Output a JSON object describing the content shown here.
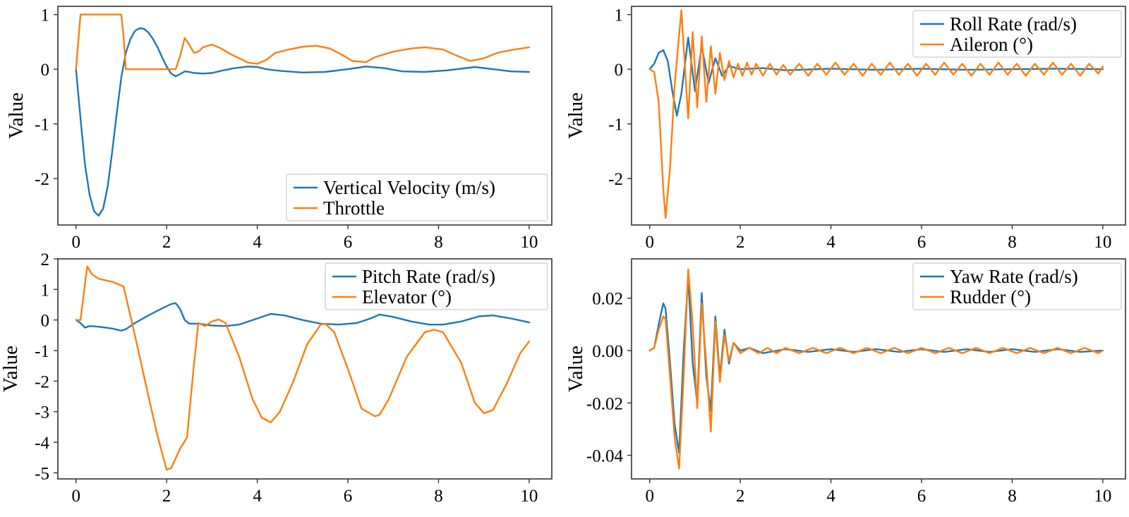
{
  "colors": {
    "blue": "#1f77b4",
    "orange": "#ff7f0e"
  },
  "chart_data": [
    {
      "type": "line",
      "title": "",
      "xlabel": "",
      "ylabel": "Value",
      "xlim": [
        -0.4,
        10.5
      ],
      "ylim": [
        -2.85,
        1.15
      ],
      "xticks": [
        0,
        2,
        4,
        6,
        8,
        10
      ],
      "xtick_labels": [
        "0",
        "2",
        "4",
        "6",
        "8",
        "10"
      ],
      "yticks": [
        1,
        0,
        -1,
        -2
      ],
      "ytick_labels": [
        "1",
        "0",
        "-1",
        "-2"
      ],
      "legend_position": "bottom-right",
      "series": [
        {
          "name": "Vertical Velocity (m/s)",
          "color": "#1f77b4",
          "x": [
            0,
            0.1,
            0.2,
            0.3,
            0.4,
            0.5,
            0.6,
            0.7,
            0.8,
            0.9,
            1.0,
            1.1,
            1.2,
            1.3,
            1.4,
            1.5,
            1.6,
            1.7,
            1.8,
            1.9,
            2.0,
            2.1,
            2.2,
            2.3,
            2.4,
            2.5,
            2.6,
            2.8,
            3.0,
            3.2,
            3.5,
            3.8,
            4.0,
            4.2,
            4.5,
            5.0,
            5.5,
            6.0,
            6.4,
            6.8,
            7.2,
            7.7,
            8.2,
            8.8,
            9.2,
            9.6,
            10.0
          ],
          "y": [
            0,
            -0.9,
            -1.75,
            -2.3,
            -2.6,
            -2.68,
            -2.55,
            -2.15,
            -1.5,
            -0.8,
            -0.15,
            0.3,
            0.55,
            0.7,
            0.75,
            0.74,
            0.67,
            0.55,
            0.4,
            0.22,
            0.05,
            -0.08,
            -0.13,
            -0.09,
            -0.04,
            -0.05,
            -0.07,
            -0.08,
            -0.07,
            -0.03,
            0.02,
            0.05,
            0.04,
            0.0,
            -0.03,
            -0.06,
            -0.05,
            0.0,
            0.05,
            0.02,
            -0.04,
            -0.05,
            -0.02,
            0.04,
            0.0,
            -0.04,
            -0.05
          ]
        },
        {
          "name": "Throttle",
          "color": "#ff7f0e",
          "x": [
            0,
            0.05,
            0.1,
            0.5,
            0.9,
            1.0,
            1.05,
            1.1,
            1.5,
            2.0,
            2.2,
            2.3,
            2.4,
            2.5,
            2.6,
            2.7,
            2.8,
            3.0,
            3.2,
            3.4,
            3.6,
            3.8,
            4.0,
            4.2,
            4.4,
            4.7,
            5.0,
            5.3,
            5.6,
            5.9,
            6.1,
            6.4,
            6.6,
            7.0,
            7.4,
            7.7,
            8.1,
            8.4,
            8.7,
            9.0,
            9.3,
            9.6,
            10.0
          ],
          "y": [
            0,
            0.5,
            1.0,
            1.0,
            1.0,
            1.0,
            0.6,
            0.0,
            0.0,
            0.0,
            0.0,
            0.25,
            0.57,
            0.45,
            0.3,
            0.32,
            0.4,
            0.45,
            0.38,
            0.28,
            0.2,
            0.12,
            0.1,
            0.17,
            0.3,
            0.36,
            0.41,
            0.43,
            0.38,
            0.25,
            0.15,
            0.13,
            0.22,
            0.32,
            0.38,
            0.4,
            0.36,
            0.25,
            0.15,
            0.2,
            0.3,
            0.35,
            0.4
          ]
        }
      ]
    },
    {
      "type": "line",
      "title": "",
      "xlabel": "",
      "ylabel": "Value",
      "xlim": [
        -0.4,
        10.5
      ],
      "ylim": [
        -2.85,
        1.15
      ],
      "xticks": [
        0,
        2,
        4,
        6,
        8,
        10
      ],
      "xtick_labels": [
        "0",
        "2",
        "4",
        "6",
        "8",
        "10"
      ],
      "yticks": [
        1,
        0,
        -1,
        -2
      ],
      "ytick_labels": [
        "1",
        "0",
        "-1",
        "-2"
      ],
      "legend_position": "top-right",
      "series": [
        {
          "name": "Roll Rate (rad/s)",
          "color": "#1f77b4",
          "x": [
            0,
            0.1,
            0.2,
            0.3,
            0.4,
            0.5,
            0.6,
            0.7,
            0.85,
            1.0,
            1.15,
            1.3,
            1.45,
            1.6,
            1.75,
            2.0,
            2.5,
            3.0,
            4.0,
            5.0,
            6.0,
            7.0,
            8.0,
            9.0,
            10.0
          ],
          "y": [
            0,
            0.1,
            0.3,
            0.35,
            0.15,
            -0.4,
            -0.85,
            -0.45,
            0.58,
            -0.4,
            0.42,
            -0.25,
            0.2,
            -0.12,
            0.06,
            0.0,
            0.02,
            -0.02,
            0.01,
            -0.01,
            0.01,
            -0.01,
            0.0,
            0.01,
            0.0
          ]
        },
        {
          "name": "Aileron (°)",
          "color": "#ff7f0e",
          "x": [
            0,
            0.1,
            0.2,
            0.3,
            0.35,
            0.45,
            0.55,
            0.7,
            0.85,
            0.95,
            1.05,
            1.15,
            1.25,
            1.35,
            1.45,
            1.55,
            1.65,
            1.75,
            1.85,
            1.95,
            2.05,
            2.15,
            2.25,
            2.35,
            2.5,
            2.65,
            2.8,
            2.95,
            3.1,
            3.3,
            3.5,
            3.7,
            3.9,
            4.1,
            4.3,
            4.5,
            4.7,
            4.9,
            5.1,
            5.3,
            5.5,
            5.7,
            5.9,
            6.1,
            6.3,
            6.5,
            6.7,
            6.9,
            7.1,
            7.3,
            7.5,
            7.7,
            7.9,
            8.1,
            8.3,
            8.5,
            8.7,
            8.9,
            9.1,
            9.3,
            9.5,
            9.7,
            9.9,
            10.0
          ],
          "y": [
            0,
            -0.05,
            -0.6,
            -2.2,
            -2.72,
            -1.8,
            -0.3,
            1.08,
            -0.9,
            0.68,
            -0.7,
            0.6,
            -0.6,
            0.42,
            -0.45,
            0.3,
            -0.2,
            0.15,
            -0.15,
            0.1,
            -0.12,
            0.12,
            -0.1,
            0.1,
            -0.12,
            0.1,
            -0.1,
            0.08,
            -0.1,
            0.1,
            -0.12,
            0.1,
            -0.1,
            0.12,
            -0.1,
            0.1,
            -0.12,
            0.1,
            -0.1,
            0.12,
            -0.1,
            0.1,
            -0.12,
            0.1,
            -0.1,
            0.12,
            -0.1,
            0.1,
            -0.12,
            0.1,
            -0.1,
            0.12,
            -0.1,
            0.1,
            -0.12,
            0.1,
            -0.1,
            0.12,
            -0.1,
            0.1,
            -0.12,
            0.1,
            -0.08,
            0.05
          ]
        }
      ]
    },
    {
      "type": "line",
      "title": "",
      "xlabel": "",
      "ylabel": "Value",
      "xlim": [
        -0.4,
        10.5
      ],
      "ylim": [
        -5.2,
        2.0
      ],
      "xticks": [
        0,
        2,
        4,
        6,
        8,
        10
      ],
      "xtick_labels": [
        "0",
        "2",
        "4",
        "6",
        "8",
        "10"
      ],
      "yticks": [
        2,
        1,
        0,
        -1,
        -2,
        -3,
        -4,
        -5
      ],
      "ytick_labels": [
        "2",
        "1",
        "0",
        "-1",
        "-2",
        "-3",
        "-4",
        "-5"
      ],
      "legend_position": "top-right",
      "series": [
        {
          "name": "Pitch Rate (rad/s)",
          "color": "#1f77b4",
          "x": [
            0,
            0.1,
            0.2,
            0.3,
            0.5,
            0.8,
            1.0,
            1.1,
            1.3,
            1.6,
            1.9,
            2.1,
            2.2,
            2.3,
            2.4,
            2.5,
            2.7,
            3.0,
            3.3,
            3.6,
            3.9,
            4.2,
            4.3,
            4.6,
            5.0,
            5.4,
            5.8,
            6.2,
            6.5,
            6.7,
            7.0,
            7.4,
            7.8,
            8.1,
            8.5,
            8.9,
            9.2,
            9.6,
            10.0
          ],
          "y": [
            0,
            -0.1,
            -0.25,
            -0.2,
            -0.22,
            -0.28,
            -0.35,
            -0.3,
            -0.1,
            0.15,
            0.38,
            0.52,
            0.55,
            0.35,
            0.0,
            -0.12,
            -0.12,
            -0.18,
            -0.2,
            -0.15,
            0.0,
            0.15,
            0.2,
            0.15,
            0.0,
            -0.12,
            -0.15,
            -0.1,
            0.05,
            0.18,
            0.1,
            -0.05,
            -0.15,
            -0.15,
            -0.05,
            0.12,
            0.15,
            0.05,
            -0.08
          ]
        },
        {
          "name": "Elevator (°)",
          "color": "#ff7f0e",
          "x": [
            0,
            0.1,
            0.2,
            0.25,
            0.35,
            0.5,
            0.8,
            1.05,
            1.3,
            1.6,
            1.8,
            2.0,
            2.1,
            2.3,
            2.45,
            2.6,
            2.7,
            2.85,
            3.0,
            3.15,
            3.3,
            3.6,
            3.9,
            4.1,
            4.3,
            4.5,
            4.8,
            5.1,
            5.4,
            5.5,
            5.7,
            6.0,
            6.3,
            6.6,
            6.7,
            6.9,
            7.3,
            7.7,
            7.9,
            8.1,
            8.5,
            8.8,
            9.0,
            9.2,
            9.5,
            9.8,
            10.0
          ],
          "y": [
            0,
            0.0,
            1.2,
            1.75,
            1.5,
            1.35,
            1.25,
            1.1,
            -0.5,
            -2.5,
            -3.8,
            -4.9,
            -4.85,
            -4.2,
            -3.85,
            -1.5,
            -0.1,
            -0.2,
            -0.05,
            0.02,
            -0.1,
            -1.2,
            -2.6,
            -3.2,
            -3.35,
            -3.0,
            -2.0,
            -0.8,
            -0.15,
            -0.12,
            -0.4,
            -1.6,
            -2.9,
            -3.15,
            -3.1,
            -2.6,
            -1.2,
            -0.4,
            -0.32,
            -0.4,
            -1.4,
            -2.7,
            -3.05,
            -2.95,
            -2.1,
            -1.1,
            -0.7
          ]
        }
      ]
    },
    {
      "type": "line",
      "title": "",
      "xlabel": "",
      "ylabel": "Value",
      "xlim": [
        -0.4,
        10.5
      ],
      "ylim": [
        -0.049,
        0.035
      ],
      "xticks": [
        0,
        2,
        4,
        6,
        8,
        10
      ],
      "xtick_labels": [
        "0",
        "2",
        "4",
        "6",
        "8",
        "10"
      ],
      "yticks": [
        0.02,
        0.0,
        -0.02,
        -0.04
      ],
      "ytick_labels": [
        "0.02",
        "0.00",
        "-0.02",
        "-0.04"
      ],
      "legend_position": "top-right",
      "series": [
        {
          "name": "Yaw Rate (rad/s)",
          "color": "#1f77b4",
          "x": [
            0,
            0.1,
            0.2,
            0.3,
            0.35,
            0.45,
            0.55,
            0.65,
            0.75,
            0.85,
            0.95,
            1.05,
            1.15,
            1.25,
            1.35,
            1.45,
            1.55,
            1.65,
            1.75,
            1.85,
            2.0,
            2.2,
            2.5,
            3.0,
            3.5,
            4.0,
            4.5,
            5.0,
            5.5,
            6.0,
            6.5,
            7.0,
            7.5,
            8.0,
            8.5,
            9.0,
            9.5,
            10.0
          ],
          "y": [
            0,
            0.001,
            0.01,
            0.018,
            0.016,
            -0.005,
            -0.028,
            -0.039,
            0.0,
            0.028,
            -0.005,
            -0.02,
            0.022,
            -0.01,
            -0.023,
            0.013,
            -0.01,
            0.008,
            -0.005,
            0.003,
            0.0,
            0.001,
            -0.001,
            0.0005,
            -0.0005,
            0.0005,
            -0.0005,
            0.0005,
            -0.0005,
            0.0005,
            -0.0005,
            0.0005,
            -0.0005,
            0.0005,
            -0.0005,
            0.0005,
            -0.0005,
            0.0
          ]
        },
        {
          "name": "Rudder (°)",
          "color": "#ff7f0e",
          "x": [
            0,
            0.1,
            0.2,
            0.3,
            0.35,
            0.45,
            0.55,
            0.65,
            0.75,
            0.85,
            0.95,
            1.05,
            1.15,
            1.25,
            1.35,
            1.45,
            1.55,
            1.65,
            1.75,
            1.85,
            2.0,
            2.2,
            2.4,
            2.6,
            2.8,
            3.0,
            3.3,
            3.6,
            3.9,
            4.2,
            4.5,
            4.8,
            5.1,
            5.4,
            5.7,
            6.0,
            6.3,
            6.6,
            6.9,
            7.2,
            7.5,
            7.8,
            8.1,
            8.4,
            8.7,
            9.0,
            9.3,
            9.6,
            9.9,
            10.0
          ],
          "y": [
            0,
            0.001,
            0.008,
            0.013,
            0.012,
            -0.01,
            -0.033,
            -0.045,
            -0.01,
            0.031,
            0.01,
            -0.022,
            0.018,
            -0.005,
            -0.031,
            0.011,
            -0.012,
            0.006,
            -0.004,
            0.003,
            -0.001,
            0.001,
            -0.001,
            0.001,
            -0.001,
            0.001,
            -0.001,
            0.001,
            -0.001,
            0.001,
            -0.001,
            0.001,
            -0.001,
            0.001,
            -0.001,
            0.001,
            -0.001,
            0.001,
            -0.001,
            0.001,
            -0.001,
            0.001,
            -0.001,
            0.001,
            -0.001,
            0.001,
            -0.001,
            0.001,
            -0.001,
            0.0
          ]
        }
      ]
    }
  ]
}
